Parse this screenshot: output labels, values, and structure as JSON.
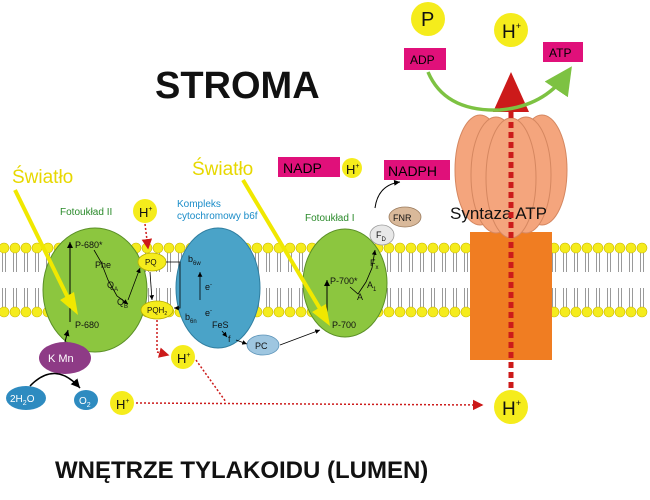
{
  "labels": {
    "stroma": "STROMA",
    "lumen": "WNĘTRZE TYLAKOIDU (LUMEN)",
    "light_left": "Światło",
    "light_right": "Światło",
    "ps2_title": "Fotoukład II",
    "ps1_title": "Fotoukład I",
    "b6f_title_1": "Kompleks",
    "b6f_title_2": "cytochromowy b6f",
    "atp_synthase": "Syntaza ATP",
    "p680_star": "P-680*",
    "phe": "Phe",
    "qa": "Q",
    "qa_sub": "A",
    "qb": "Q",
    "qb_sub": "B",
    "p680": "P-680",
    "pq": "PQ",
    "pqh": "PQH",
    "pqh_sub": "2",
    "b6w": "b",
    "b6w_sub": "6w",
    "b6n": "b",
    "b6n_sub": "6n",
    "e_minus_1": "e",
    "e_minus_2": "e",
    "fes": "FeS",
    "f": "f",
    "pc": "PC",
    "p700_star": "P-700*",
    "p700": "P-700",
    "a0": "A",
    "a1": "A",
    "a1_sub": "1",
    "fx": "F",
    "fx_sub": "x",
    "fd": "F",
    "fd_sub": "D",
    "fnr": "FNR",
    "nadp": "NADP",
    "nadph": "NADPH",
    "adp": "ADP",
    "atp": "ATP",
    "p": "P",
    "h_plus": "H",
    "plus": "+",
    "kmn": "K Mn",
    "h2o": "2H",
    "h2o_sub": "2",
    "h2o_end": "O",
    "o2": "O",
    "o2_sub": "2"
  },
  "colors": {
    "psII": "#8cc63f",
    "psI": "#8cc63f",
    "b6f": "#4aa3c8",
    "atp_synthase_head": "#f4a57d",
    "atp_synthase_stalk": "#f07d22",
    "membrane_head": "#f5ec1c",
    "kmn": "#8e3b86",
    "water": "#2e8bc0",
    "proton": "#f5ec1c",
    "label_box": "#e0107a",
    "light_arrow": "#f0e800",
    "proton_path": "#cc1a1a",
    "green_arrow": "#7dc242"
  }
}
